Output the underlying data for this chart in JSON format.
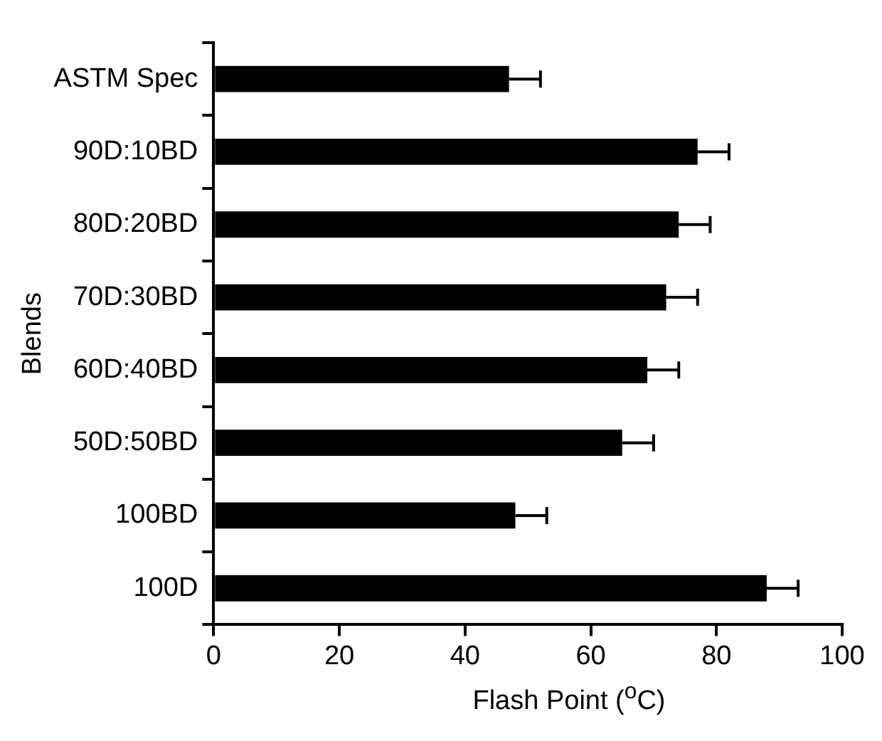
{
  "chart_data": {
    "type": "bar",
    "orientation": "horizontal",
    "xlabel": "Flash Point ($^{o}$C)",
    "ylabel": "Blends",
    "categories": [
      "ASTM Spec",
      "90D:10BD",
      "80D:20BD",
      "70D:30BD",
      "60D:40BD",
      "50D:50BD",
      "100BD",
      "100D"
    ],
    "values": [
      47,
      77,
      74,
      72,
      69,
      65,
      48,
      88
    ],
    "errors": [
      [
        47,
        52
      ],
      [
        77,
        82
      ],
      [
        74,
        79
      ],
      [
        72,
        77
      ],
      [
        69,
        74
      ],
      [
        65,
        70
      ],
      [
        48,
        53
      ],
      [
        88,
        93
      ]
    ],
    "color": "#000000",
    "xlim": [
      0,
      100
    ],
    "xticks": [
      0,
      20,
      40,
      60,
      80,
      100
    ],
    "grid": false,
    "legend": false
  }
}
